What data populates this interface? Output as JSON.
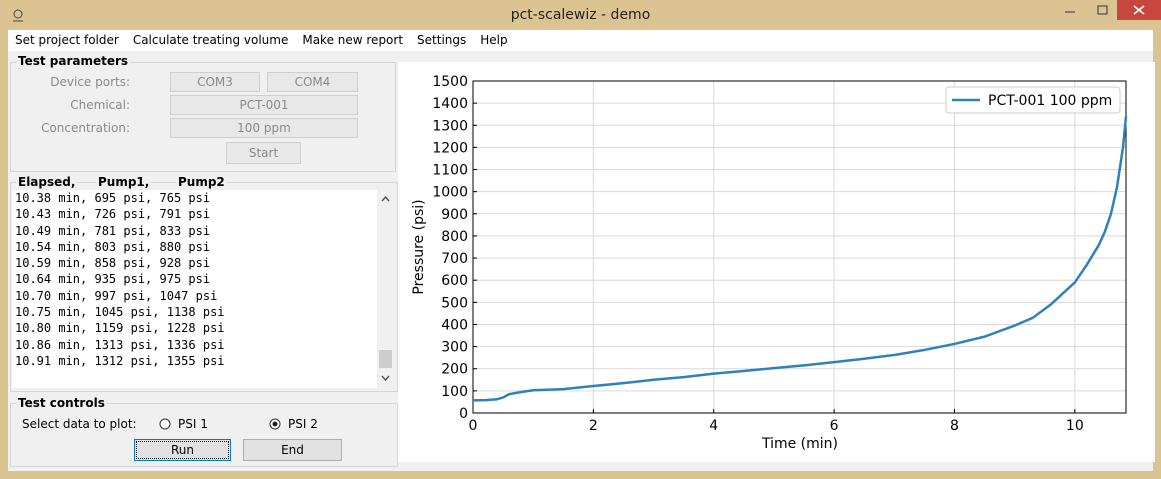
{
  "window": {
    "title": "pct-scalewiz - demo"
  },
  "menu": [
    "Set project folder",
    "Calculate treating volume",
    "Make new report",
    "Settings",
    "Help"
  ],
  "test_parameters": {
    "title": "Test parameters",
    "device_ports_label": "Device ports:",
    "ports": [
      "COM3",
      "COM4"
    ],
    "chemical_label": "Chemical:",
    "chemical": "PCT-001",
    "concentration_label": "Concentration:",
    "concentration": "100 ppm",
    "start": "Start"
  },
  "log": {
    "headers": [
      "Elapsed,",
      "Pump1,",
      "Pump2"
    ],
    "lines": [
      "10.38 min, 695 psi, 765 psi",
      "10.43 min, 726 psi, 791 psi",
      "10.49 min, 781 psi, 833 psi",
      "10.54 min, 803 psi, 880 psi",
      "10.59 min, 858 psi, 928 psi",
      "10.64 min, 935 psi, 975 psi",
      "10.70 min, 997 psi, 1047 psi",
      "10.75 min, 1045 psi, 1138 psi",
      "10.80 min, 1159 psi, 1228 psi",
      "10.86 min, 1313 psi, 1336 psi",
      "10.91 min, 1312 psi, 1355 psi"
    ]
  },
  "test_controls": {
    "title": "Test controls",
    "select_label": "Select data to plot:",
    "options": [
      "PSI 1",
      "PSI 2"
    ],
    "selected": 1,
    "run": "Run",
    "end": "End"
  },
  "chart_data": {
    "type": "line",
    "xlabel": "Time (min)",
    "ylabel": "Pressure (psi)",
    "x": [
      0,
      0.2,
      0.4,
      0.5,
      0.6,
      0.8,
      1,
      1.5,
      2,
      2.5,
      3,
      3.5,
      4,
      4.5,
      5,
      5.5,
      6,
      6.5,
      7,
      7.5,
      8,
      8.5,
      8.8,
      9,
      9.3,
      9.6,
      9.8,
      10,
      10.2,
      10.4,
      10.5,
      10.6,
      10.7,
      10.8,
      10.85
    ],
    "series": [
      {
        "name": "PCT-001 100 ppm",
        "color": "#2f82b8",
        "values": [
          57,
          58,
          62,
          70,
          85,
          95,
          103,
          108,
          122,
          135,
          150,
          162,
          178,
          190,
          203,
          215,
          230,
          245,
          262,
          285,
          312,
          345,
          375,
          395,
          430,
          490,
          540,
          590,
          670,
          760,
          820,
          900,
          1020,
          1200,
          1340
        ]
      }
    ],
    "xlim": [
      0,
      10.85
    ],
    "ylim": [
      0,
      1500
    ],
    "xticks": [
      0,
      2,
      4,
      6,
      8,
      10
    ],
    "yticks": [
      0,
      100,
      200,
      300,
      400,
      500,
      600,
      700,
      800,
      900,
      1000,
      1100,
      1200,
      1300,
      1400,
      1500
    ],
    "grid": true,
    "legend": "upper right"
  }
}
